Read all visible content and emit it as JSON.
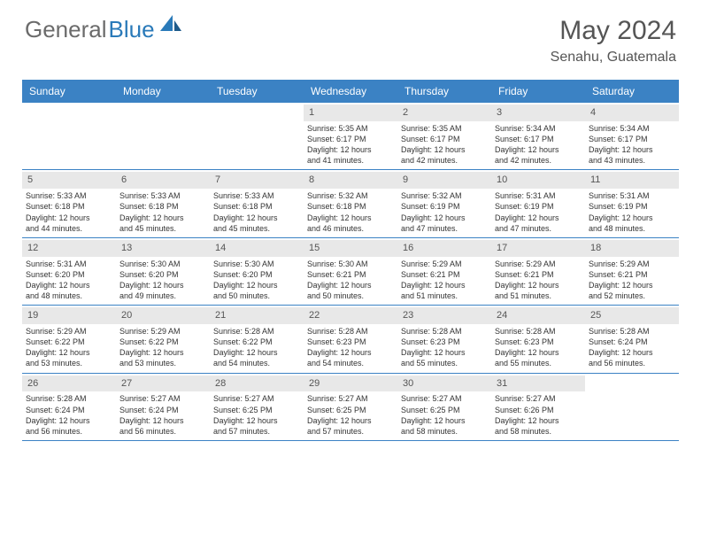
{
  "brand": {
    "part1": "General",
    "part2": "Blue"
  },
  "title": "May 2024",
  "location": "Senahu, Guatemala",
  "header_bg": "#3b82c4",
  "daynum_bg": "#e8e8e8",
  "days": [
    "Sunday",
    "Monday",
    "Tuesday",
    "Wednesday",
    "Thursday",
    "Friday",
    "Saturday"
  ],
  "weeks": [
    [
      {
        "n": "",
        "empty": true
      },
      {
        "n": "",
        "empty": true
      },
      {
        "n": "",
        "empty": true
      },
      {
        "n": "1",
        "sr": "Sunrise: 5:35 AM",
        "ss": "Sunset: 6:17 PM",
        "d1": "Daylight: 12 hours",
        "d2": "and 41 minutes."
      },
      {
        "n": "2",
        "sr": "Sunrise: 5:35 AM",
        "ss": "Sunset: 6:17 PM",
        "d1": "Daylight: 12 hours",
        "d2": "and 42 minutes."
      },
      {
        "n": "3",
        "sr": "Sunrise: 5:34 AM",
        "ss": "Sunset: 6:17 PM",
        "d1": "Daylight: 12 hours",
        "d2": "and 42 minutes."
      },
      {
        "n": "4",
        "sr": "Sunrise: 5:34 AM",
        "ss": "Sunset: 6:17 PM",
        "d1": "Daylight: 12 hours",
        "d2": "and 43 minutes."
      }
    ],
    [
      {
        "n": "5",
        "sr": "Sunrise: 5:33 AM",
        "ss": "Sunset: 6:18 PM",
        "d1": "Daylight: 12 hours",
        "d2": "and 44 minutes."
      },
      {
        "n": "6",
        "sr": "Sunrise: 5:33 AM",
        "ss": "Sunset: 6:18 PM",
        "d1": "Daylight: 12 hours",
        "d2": "and 45 minutes."
      },
      {
        "n": "7",
        "sr": "Sunrise: 5:33 AM",
        "ss": "Sunset: 6:18 PM",
        "d1": "Daylight: 12 hours",
        "d2": "and 45 minutes."
      },
      {
        "n": "8",
        "sr": "Sunrise: 5:32 AM",
        "ss": "Sunset: 6:18 PM",
        "d1": "Daylight: 12 hours",
        "d2": "and 46 minutes."
      },
      {
        "n": "9",
        "sr": "Sunrise: 5:32 AM",
        "ss": "Sunset: 6:19 PM",
        "d1": "Daylight: 12 hours",
        "d2": "and 47 minutes."
      },
      {
        "n": "10",
        "sr": "Sunrise: 5:31 AM",
        "ss": "Sunset: 6:19 PM",
        "d1": "Daylight: 12 hours",
        "d2": "and 47 minutes."
      },
      {
        "n": "11",
        "sr": "Sunrise: 5:31 AM",
        "ss": "Sunset: 6:19 PM",
        "d1": "Daylight: 12 hours",
        "d2": "and 48 minutes."
      }
    ],
    [
      {
        "n": "12",
        "sr": "Sunrise: 5:31 AM",
        "ss": "Sunset: 6:20 PM",
        "d1": "Daylight: 12 hours",
        "d2": "and 48 minutes."
      },
      {
        "n": "13",
        "sr": "Sunrise: 5:30 AM",
        "ss": "Sunset: 6:20 PM",
        "d1": "Daylight: 12 hours",
        "d2": "and 49 minutes."
      },
      {
        "n": "14",
        "sr": "Sunrise: 5:30 AM",
        "ss": "Sunset: 6:20 PM",
        "d1": "Daylight: 12 hours",
        "d2": "and 50 minutes."
      },
      {
        "n": "15",
        "sr": "Sunrise: 5:30 AM",
        "ss": "Sunset: 6:21 PM",
        "d1": "Daylight: 12 hours",
        "d2": "and 50 minutes."
      },
      {
        "n": "16",
        "sr": "Sunrise: 5:29 AM",
        "ss": "Sunset: 6:21 PM",
        "d1": "Daylight: 12 hours",
        "d2": "and 51 minutes."
      },
      {
        "n": "17",
        "sr": "Sunrise: 5:29 AM",
        "ss": "Sunset: 6:21 PM",
        "d1": "Daylight: 12 hours",
        "d2": "and 51 minutes."
      },
      {
        "n": "18",
        "sr": "Sunrise: 5:29 AM",
        "ss": "Sunset: 6:21 PM",
        "d1": "Daylight: 12 hours",
        "d2": "and 52 minutes."
      }
    ],
    [
      {
        "n": "19",
        "sr": "Sunrise: 5:29 AM",
        "ss": "Sunset: 6:22 PM",
        "d1": "Daylight: 12 hours",
        "d2": "and 53 minutes."
      },
      {
        "n": "20",
        "sr": "Sunrise: 5:29 AM",
        "ss": "Sunset: 6:22 PM",
        "d1": "Daylight: 12 hours",
        "d2": "and 53 minutes."
      },
      {
        "n": "21",
        "sr": "Sunrise: 5:28 AM",
        "ss": "Sunset: 6:22 PM",
        "d1": "Daylight: 12 hours",
        "d2": "and 54 minutes."
      },
      {
        "n": "22",
        "sr": "Sunrise: 5:28 AM",
        "ss": "Sunset: 6:23 PM",
        "d1": "Daylight: 12 hours",
        "d2": "and 54 minutes."
      },
      {
        "n": "23",
        "sr": "Sunrise: 5:28 AM",
        "ss": "Sunset: 6:23 PM",
        "d1": "Daylight: 12 hours",
        "d2": "and 55 minutes."
      },
      {
        "n": "24",
        "sr": "Sunrise: 5:28 AM",
        "ss": "Sunset: 6:23 PM",
        "d1": "Daylight: 12 hours",
        "d2": "and 55 minutes."
      },
      {
        "n": "25",
        "sr": "Sunrise: 5:28 AM",
        "ss": "Sunset: 6:24 PM",
        "d1": "Daylight: 12 hours",
        "d2": "and 56 minutes."
      }
    ],
    [
      {
        "n": "26",
        "sr": "Sunrise: 5:28 AM",
        "ss": "Sunset: 6:24 PM",
        "d1": "Daylight: 12 hours",
        "d2": "and 56 minutes."
      },
      {
        "n": "27",
        "sr": "Sunrise: 5:27 AM",
        "ss": "Sunset: 6:24 PM",
        "d1": "Daylight: 12 hours",
        "d2": "and 56 minutes."
      },
      {
        "n": "28",
        "sr": "Sunrise: 5:27 AM",
        "ss": "Sunset: 6:25 PM",
        "d1": "Daylight: 12 hours",
        "d2": "and 57 minutes."
      },
      {
        "n": "29",
        "sr": "Sunrise: 5:27 AM",
        "ss": "Sunset: 6:25 PM",
        "d1": "Daylight: 12 hours",
        "d2": "and 57 minutes."
      },
      {
        "n": "30",
        "sr": "Sunrise: 5:27 AM",
        "ss": "Sunset: 6:25 PM",
        "d1": "Daylight: 12 hours",
        "d2": "and 58 minutes."
      },
      {
        "n": "31",
        "sr": "Sunrise: 5:27 AM",
        "ss": "Sunset: 6:26 PM",
        "d1": "Daylight: 12 hours",
        "d2": "and 58 minutes."
      },
      {
        "n": "",
        "empty": true
      }
    ]
  ]
}
